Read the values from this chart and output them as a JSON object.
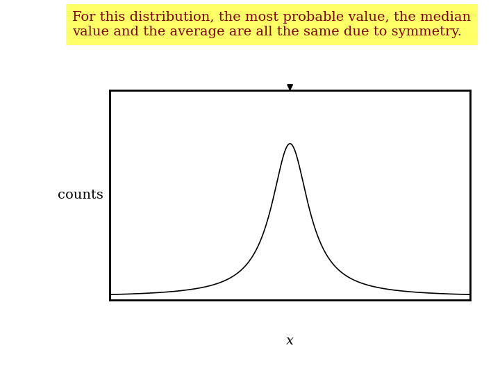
{
  "title_text": "For this distribution, the most probable value, the median\nvalue and the average are all the same due to symmetry.",
  "title_bg_color": "#ffff66",
  "title_text_color": "#800000",
  "ylabel": "counts",
  "xlabel": "x",
  "curve_color": "#000000",
  "arrow_color": "#000000",
  "bg_color": "#ffffff",
  "box_bg": "#ffffff",
  "mu": 0.0,
  "sigma": 0.35,
  "x_range": [
    -4,
    4
  ],
  "ylabel_fontsize": 14,
  "xlabel_fontsize": 14,
  "title_fontsize": 14
}
